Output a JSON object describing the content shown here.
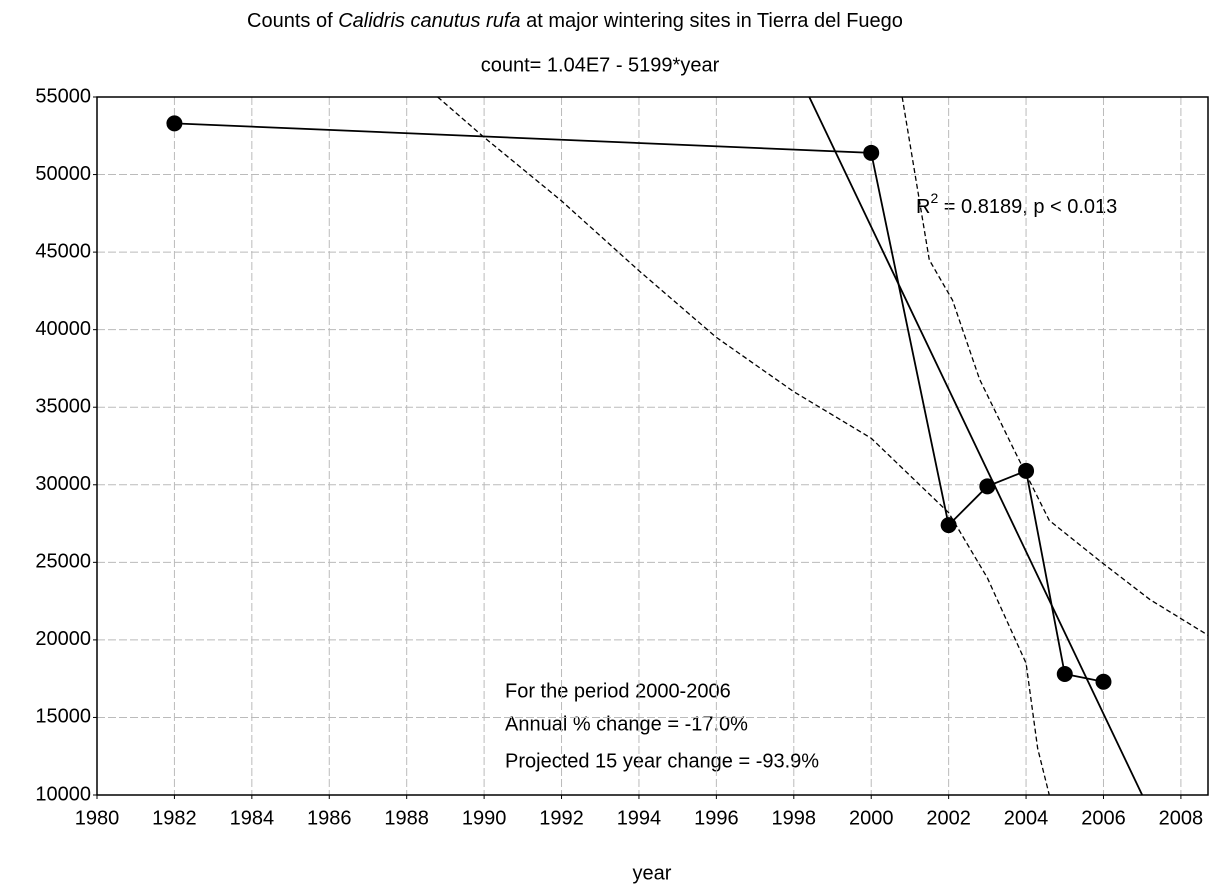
{
  "chart_data": {
    "type": "line",
    "title": {
      "before": "Counts of ",
      "italic": "Calidris canutus rufa",
      "after": " at major wintering sites in Tierra del Fuego"
    },
    "subtitle": "count= 1.04E7 - 5199*year",
    "x_label": "year",
    "xlim": [
      1980,
      2008.7
    ],
    "xticks": [
      1980,
      1982,
      1984,
      1986,
      1988,
      1990,
      1992,
      1994,
      1996,
      1998,
      2000,
      2002,
      2004,
      2006,
      2008
    ],
    "ylim": [
      10000,
      55000
    ],
    "yticks": [
      10000,
      15000,
      20000,
      25000,
      30000,
      35000,
      40000,
      45000,
      50000,
      55000
    ],
    "grid": true,
    "series": [
      {
        "color": "#000000",
        "style": "solid",
        "markers": true,
        "x": [
          1982,
          2000,
          2002,
          2003,
          2004,
          2005,
          2006
        ],
        "values": [
          53300,
          51400,
          27400,
          29900,
          30900,
          17800,
          17300
        ]
      },
      {
        "color": "#000000",
        "style": "solid",
        "markers": false,
        "x": [
          1998.4,
          2007.0
        ],
        "values": [
          55000,
          10000
        ]
      },
      {
        "color": "#000000",
        "style": "dashed",
        "markers": false,
        "x": [
          1988.8,
          1990,
          1992,
          1994,
          1996,
          1998,
          2000,
          2002,
          2003,
          2004,
          2004.3,
          2004.6
        ],
        "values": [
          55000,
          52400,
          48300,
          43800,
          39500,
          36000,
          33000,
          28200,
          24000,
          18500,
          13000,
          10000
        ]
      },
      {
        "color": "#000000",
        "style": "dashed",
        "markers": false,
        "x": [
          2000.8,
          2001.5,
          2002.1,
          2002.8,
          2003.7,
          2004.6,
          2005.9,
          2007.2,
          2008.7
        ],
        "values": [
          55000,
          44500,
          41900,
          36800,
          32200,
          27700,
          25100,
          22600,
          20300
        ]
      }
    ],
    "annotations": {
      "r2": {
        "base": "R",
        "sup": "2",
        "rest": " = 0.8189, p < 0.013"
      },
      "box": [
        "For the period 2000-2006",
        "Annual % change = -17.0%",
        "Projected 15 year change = -93.9%"
      ]
    }
  }
}
